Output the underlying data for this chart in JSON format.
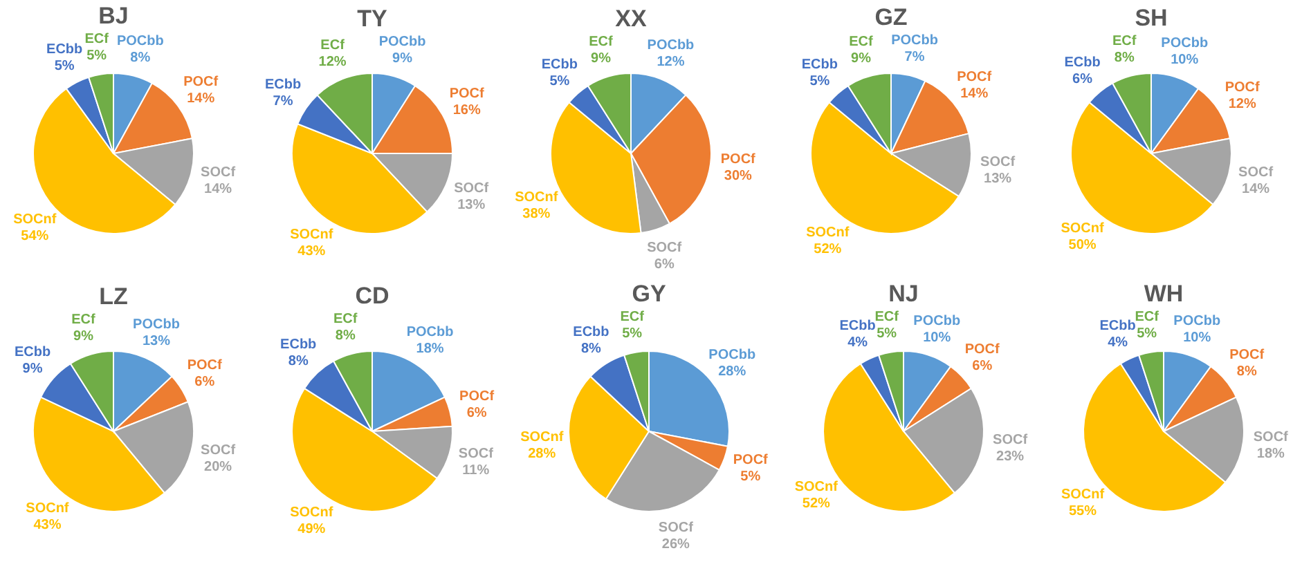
{
  "chart_data": [
    {
      "type": "pie",
      "title": "BJ",
      "categories": [
        "POCbb",
        "POCf",
        "SOCf",
        "SOCnf",
        "ECbb",
        "ECf"
      ],
      "values": [
        8,
        14,
        14,
        54,
        5,
        5
      ],
      "value_labels": [
        "8%",
        "14%",
        "14%",
        "54%",
        "5%",
        "5%"
      ],
      "colors": [
        "#5b9bd5",
        "#ed7d31",
        "#a5a5a5",
        "#ffc000",
        "#4472c4",
        "#70ad47"
      ]
    },
    {
      "type": "pie",
      "title": "TY",
      "categories": [
        "POCbb",
        "POCf",
        "SOCf",
        "SOCnf",
        "ECbb",
        "ECf"
      ],
      "values": [
        9,
        16,
        13,
        43,
        7,
        12
      ],
      "value_labels": [
        "9%",
        "16%",
        "13%",
        "43%",
        "7%",
        "12%"
      ],
      "colors": [
        "#5b9bd5",
        "#ed7d31",
        "#a5a5a5",
        "#ffc000",
        "#4472c4",
        "#70ad47"
      ]
    },
    {
      "type": "pie",
      "title": "XX",
      "categories": [
        "POCbb",
        "POCf",
        "SOCf",
        "SOCnf",
        "ECbb",
        "ECf"
      ],
      "values": [
        12,
        30,
        6,
        38,
        5,
        9
      ],
      "value_labels": [
        "12%",
        "30%",
        "6%",
        "38%",
        "5%",
        "9%"
      ],
      "colors": [
        "#5b9bd5",
        "#ed7d31",
        "#a5a5a5",
        "#ffc000",
        "#4472c4",
        "#70ad47"
      ]
    },
    {
      "type": "pie",
      "title": "GZ",
      "categories": [
        "POCbb",
        "POCf",
        "SOCf",
        "SOCnf",
        "ECbb",
        "ECf"
      ],
      "values": [
        7,
        14,
        13,
        52,
        5,
        9
      ],
      "value_labels": [
        "7%",
        "14%",
        "13%",
        "52%",
        "5%",
        "9%"
      ],
      "colors": [
        "#5b9bd5",
        "#ed7d31",
        "#a5a5a5",
        "#ffc000",
        "#4472c4",
        "#70ad47"
      ]
    },
    {
      "type": "pie",
      "title": "SH",
      "categories": [
        "POCbb",
        "POCf",
        "SOCf",
        "SOCnf",
        "ECbb",
        "ECf"
      ],
      "values": [
        10,
        12,
        14,
        50,
        6,
        8
      ],
      "value_labels": [
        "10%",
        "12%",
        "14%",
        "50%",
        "6%",
        "8%"
      ],
      "colors": [
        "#5b9bd5",
        "#ed7d31",
        "#a5a5a5",
        "#ffc000",
        "#4472c4",
        "#70ad47"
      ]
    },
    {
      "type": "pie",
      "title": "LZ",
      "categories": [
        "POCbb",
        "POCf",
        "SOCf",
        "SOCnf",
        "ECbb",
        "ECf"
      ],
      "values": [
        13,
        6,
        20,
        43,
        9,
        9
      ],
      "value_labels": [
        "13%",
        "6%",
        "20%",
        "43%",
        "9%",
        "9%"
      ],
      "colors": [
        "#5b9bd5",
        "#ed7d31",
        "#a5a5a5",
        "#ffc000",
        "#4472c4",
        "#70ad47"
      ]
    },
    {
      "type": "pie",
      "title": "CD",
      "categories": [
        "POCbb",
        "POCf",
        "SOCf",
        "SOCnf",
        "ECbb",
        "ECf"
      ],
      "values": [
        18,
        6,
        11,
        49,
        8,
        8
      ],
      "value_labels": [
        "18%",
        "6%",
        "11%",
        "49%",
        "8%",
        "8%"
      ],
      "colors": [
        "#5b9bd5",
        "#ed7d31",
        "#a5a5a5",
        "#ffc000",
        "#4472c4",
        "#70ad47"
      ]
    },
    {
      "type": "pie",
      "title": "GY",
      "categories": [
        "POCbb",
        "POCf",
        "SOCf",
        "SOCnf",
        "ECbb",
        "ECf"
      ],
      "values": [
        28,
        5,
        26,
        28,
        8,
        5
      ],
      "value_labels": [
        "28%",
        "5%",
        "26%",
        "28%",
        "8%",
        "5%"
      ],
      "colors": [
        "#5b9bd5",
        "#ed7d31",
        "#a5a5a5",
        "#ffc000",
        "#4472c4",
        "#70ad47"
      ]
    },
    {
      "type": "pie",
      "title": "NJ",
      "categories": [
        "POCbb",
        "POCf",
        "SOCf",
        "SOCnf",
        "ECbb",
        "ECf"
      ],
      "values": [
        10,
        6,
        23,
        52,
        4,
        5
      ],
      "value_labels": [
        "10%",
        "6%",
        "23%",
        "52%",
        "4%",
        "5%"
      ],
      "colors": [
        "#5b9bd5",
        "#ed7d31",
        "#a5a5a5",
        "#ffc000",
        "#4472c4",
        "#70ad47"
      ]
    },
    {
      "type": "pie",
      "title": "WH",
      "categories": [
        "POCbb",
        "POCf",
        "SOCf",
        "SOCnf",
        "ECbb",
        "ECf"
      ],
      "values": [
        10,
        8,
        18,
        55,
        4,
        5
      ],
      "value_labels": [
        "10%",
        "8%",
        "18%",
        "55%",
        "4%",
        "5%"
      ],
      "colors": [
        "#5b9bd5",
        "#ed7d31",
        "#a5a5a5",
        "#ffc000",
        "#4472c4",
        "#70ad47"
      ]
    }
  ]
}
